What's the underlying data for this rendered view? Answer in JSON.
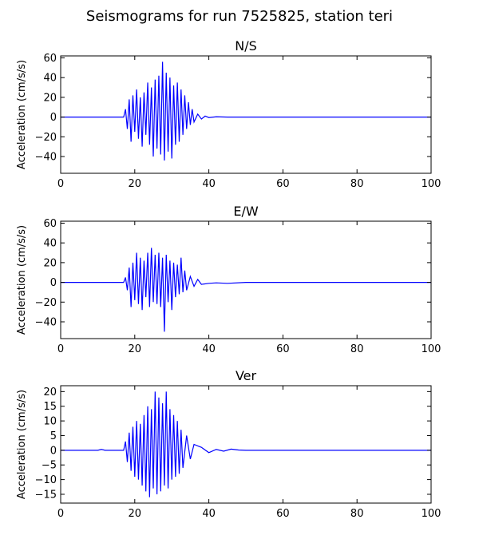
{
  "figure": {
    "title": "Seismograms for run 7525825, station teri"
  },
  "line_color": "#0000ff",
  "chart_data": [
    {
      "type": "line",
      "title": "N/S",
      "xlabel": "",
      "ylabel": "Acceleration (cm/s/s)",
      "xlim": [
        0,
        100
      ],
      "ylim": [
        -57,
        62
      ],
      "xticks": [
        0,
        20,
        40,
        60,
        80,
        100
      ],
      "yticks": [
        -40,
        -20,
        0,
        20,
        40,
        60
      ],
      "x": [
        0,
        17,
        17.5,
        18,
        18.5,
        19,
        19.5,
        20,
        20.5,
        21,
        21.5,
        22,
        22.5,
        23,
        23.5,
        24,
        24.5,
        25,
        25.5,
        26,
        26.5,
        27,
        27.5,
        28,
        28.5,
        29,
        29.5,
        30,
        30.5,
        31,
        31.5,
        32,
        32.5,
        33,
        33.5,
        34,
        34.5,
        35,
        35.5,
        36,
        37,
        38,
        39,
        40,
        42,
        45,
        50,
        60,
        100
      ],
      "values": [
        0,
        0,
        8,
        -12,
        18,
        -25,
        22,
        -15,
        28,
        -22,
        20,
        -30,
        25,
        -18,
        35,
        -28,
        30,
        -40,
        38,
        -32,
        42,
        -38,
        56,
        -44,
        45,
        -35,
        40,
        -42,
        32,
        -28,
        35,
        -25,
        28,
        -18,
        22,
        -12,
        15,
        -8,
        8,
        -5,
        3,
        -2,
        1,
        -0.5,
        0.3,
        0,
        0,
        0,
        0
      ]
    },
    {
      "type": "line",
      "title": "E/W",
      "xlabel": "",
      "ylabel": "Acceleration (cm/s/s)",
      "xlim": [
        0,
        100
      ],
      "ylim": [
        -57,
        62
      ],
      "xticks": [
        0,
        20,
        40,
        60,
        80,
        100
      ],
      "yticks": [
        -40,
        -20,
        0,
        20,
        40,
        60
      ],
      "x": [
        0,
        17,
        17.5,
        18,
        18.5,
        19,
        19.5,
        20,
        20.5,
        21,
        21.5,
        22,
        22.5,
        23,
        23.5,
        24,
        24.5,
        25,
        25.5,
        26,
        26.5,
        27,
        27.5,
        28,
        28.5,
        29,
        29.5,
        30,
        30.5,
        31,
        31.5,
        32,
        32.5,
        33,
        33.5,
        34,
        35,
        36,
        37,
        38,
        40,
        42,
        45,
        50,
        100
      ],
      "values": [
        0,
        0,
        5,
        -8,
        15,
        -25,
        20,
        -18,
        30,
        -22,
        25,
        -28,
        22,
        -15,
        30,
        -25,
        35,
        -20,
        28,
        -22,
        30,
        -25,
        25,
        -50,
        28,
        -20,
        22,
        -28,
        20,
        -15,
        18,
        -12,
        25,
        -10,
        12,
        -8,
        6,
        -4,
        3,
        -2,
        -1,
        -0.5,
        -1,
        0,
        0
      ]
    },
    {
      "type": "line",
      "title": "Ver",
      "xlabel": "",
      "ylabel": "Acceleration (cm/s/s)",
      "xlim": [
        0,
        100
      ],
      "ylim": [
        -18,
        22
      ],
      "xticks": [
        0,
        20,
        40,
        60,
        80,
        100
      ],
      "yticks": [
        -15,
        -10,
        -5,
        0,
        5,
        10,
        15,
        20
      ],
      "x": [
        0,
        10,
        11,
        12,
        17,
        17.5,
        18,
        18.5,
        19,
        19.5,
        20,
        20.5,
        21,
        21.5,
        22,
        22.5,
        23,
        23.5,
        24,
        24.5,
        25,
        25.5,
        26,
        26.5,
        27,
        27.5,
        28,
        28.5,
        29,
        29.5,
        30,
        30.5,
        31,
        31.5,
        32,
        32.5,
        33,
        34,
        35,
        36,
        38,
        40,
        42,
        44,
        46,
        48,
        50,
        60,
        100
      ],
      "values": [
        0,
        0,
        0.3,
        0,
        0,
        3,
        -4,
        6,
        -7,
        8,
        -9,
        10,
        -10,
        9,
        -12,
        12,
        -14,
        15,
        -16,
        14,
        -13,
        20,
        -15,
        18,
        -14,
        16,
        -12,
        20,
        -13,
        14,
        -10,
        12,
        -9,
        10,
        -8,
        7,
        -6,
        5,
        -3,
        2,
        1,
        -0.8,
        0.3,
        -0.3,
        0.4,
        0.1,
        0,
        0,
        0
      ]
    }
  ]
}
